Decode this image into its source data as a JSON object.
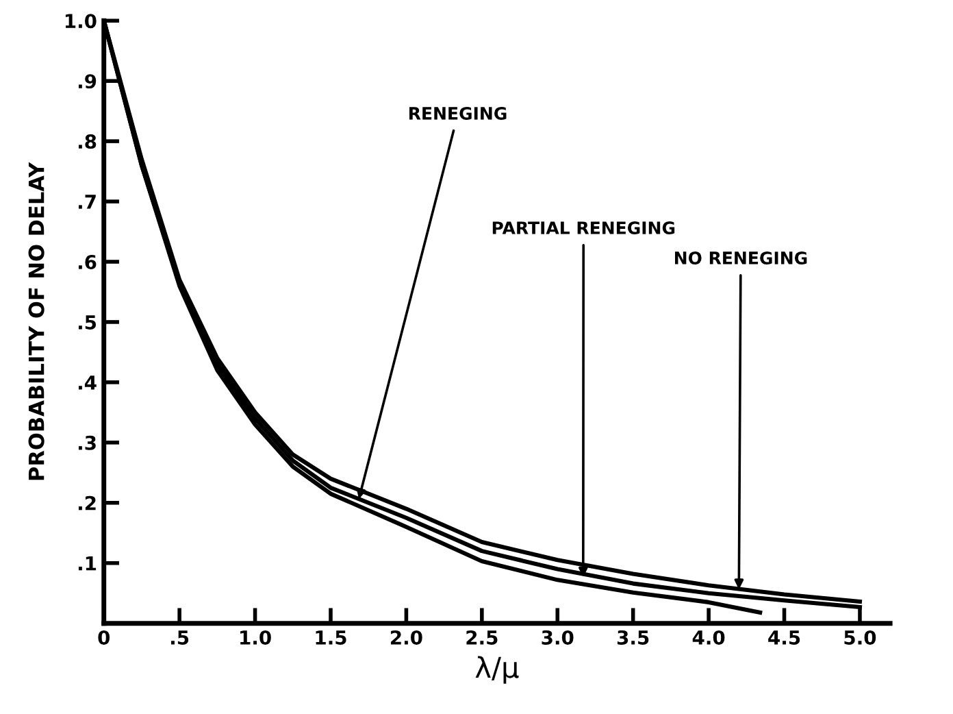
{
  "chart_data": {
    "type": "line",
    "xlabel": "λ/μ",
    "ylabel": "PROBABILITY OF NO DELAY",
    "xlim": [
      0,
      5.2
    ],
    "ylim": [
      0,
      1.0
    ],
    "xticks": [
      0,
      {
        "value": 0.5,
        "label": ".5"
      },
      {
        "value": 1.0,
        "label": "1.0"
      },
      {
        "value": 1.5,
        "label": "1.5"
      },
      {
        "value": 2.0,
        "label": "2.0"
      },
      {
        "value": 2.5,
        "label": "2.5"
      },
      {
        "value": 3.0,
        "label": "3.0"
      },
      {
        "value": 3.5,
        "label": "3.5"
      },
      {
        "value": 4.0,
        "label": "4.0"
      },
      {
        "value": 4.5,
        "label": "4.5"
      },
      {
        "value": 5.0,
        "label": "5.0"
      }
    ],
    "yticks": [
      {
        "value": 0.1,
        "label": ".1"
      },
      {
        "value": 0.2,
        "label": ".2"
      },
      {
        "value": 0.3,
        "label": ".3"
      },
      {
        "value": 0.4,
        "label": ".4"
      },
      {
        "value": 0.5,
        "label": ".5"
      },
      {
        "value": 0.6,
        "label": ".6"
      },
      {
        "value": 0.7,
        "label": ".7"
      },
      {
        "value": 0.8,
        "label": ".8"
      },
      {
        "value": 0.9,
        "label": ".9"
      },
      {
        "value": 1.0,
        "label": "1.0"
      }
    ],
    "grid": false,
    "marker": "none",
    "line_style": "solid",
    "series": [
      {
        "color": "#000000",
        "x": [
          0,
          0.25,
          0.5,
          0.75,
          1.0,
          1.25,
          1.5,
          2.0,
          2.5,
          3.0,
          3.5,
          4.0,
          4.5,
          5.0
        ],
        "values": [
          1.0,
          0.77,
          0.57,
          0.44,
          0.35,
          0.28,
          0.24,
          0.19,
          0.135,
          0.105,
          0.082,
          0.063,
          0.048,
          0.036
        ]
      },
      {
        "color": "#000000",
        "x": [
          0,
          0.25,
          0.5,
          0.75,
          1.0,
          1.25,
          1.5,
          2.0,
          2.5,
          3.0,
          3.5,
          4.0,
          4.5,
          5.0
        ],
        "values": [
          1.0,
          0.76,
          0.565,
          0.43,
          0.34,
          0.27,
          0.225,
          0.175,
          0.12,
          0.09,
          0.066,
          0.05,
          0.038,
          0.027
        ]
      },
      {
        "color": "#000000",
        "x": [
          0,
          0.25,
          0.5,
          0.75,
          1.0,
          1.25,
          1.5,
          2.0,
          2.5,
          3.0,
          3.5,
          4.0,
          4.34
        ],
        "values": [
          1.0,
          0.76,
          0.56,
          0.42,
          0.33,
          0.26,
          0.215,
          0.16,
          0.103,
          0.072,
          0.051,
          0.035,
          0.018
        ]
      }
    ],
    "annotations": [
      {
        "text": "RENEGING",
        "x": 1.68,
        "y": 0.2
      },
      {
        "text": "PARTIAL RENEGING",
        "x": 3.17,
        "y": 0.07
      },
      {
        "text": "NO RENEGING",
        "x": 4.2,
        "y": 0.05
      }
    ]
  }
}
